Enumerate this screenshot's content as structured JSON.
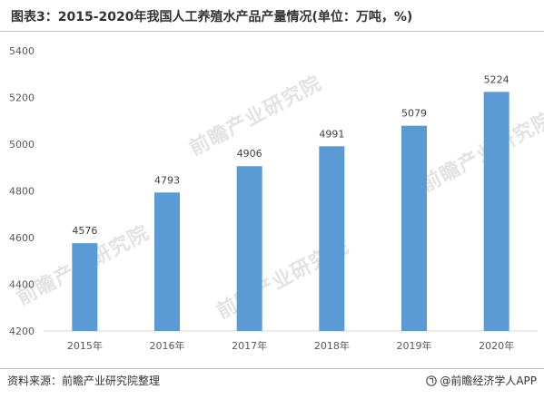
{
  "title": "图表3：2015-2020年我国人工养殖水产品产量情况(单位：万吨，%)",
  "source": "资料来源：前瞻产业研究院整理",
  "brand": "@前瞻经济学人APP",
  "watermark": "前瞻产业研究院",
  "colors": {
    "bar": "#5b9bd5",
    "axis": "#d9d9d9",
    "text": "#595959"
  },
  "chart_data": {
    "type": "bar",
    "categories": [
      "2015年",
      "2016年",
      "2017年",
      "2018年",
      "2019年",
      "2020年"
    ],
    "values": [
      4576,
      4793,
      4906,
      4991,
      5079,
      5224
    ],
    "ylim": [
      4200,
      5400
    ],
    "yticks": [
      4200,
      4400,
      4600,
      4800,
      5000,
      5200,
      5400
    ],
    "grid": false,
    "data_labels": true
  }
}
